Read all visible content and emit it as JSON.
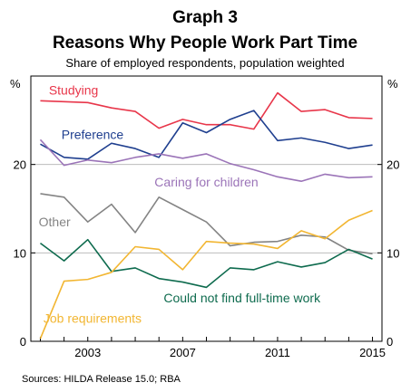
{
  "chart_data": {
    "type": "line",
    "title": "Graph 3",
    "subtitle": "Reasons Why People Work Part Time",
    "note": "Share of employed respondents, population weighted",
    "ylabel_left": "%",
    "ylabel_right": "%",
    "ylim": [
      0,
      30
    ],
    "yticks": [
      0,
      10,
      20
    ],
    "xlim": [
      2000.6,
      2015.4
    ],
    "xticks": [
      2003,
      2007,
      2011,
      2015
    ],
    "grid": true,
    "source": "Sources: HILDA Release 15.0; RBA",
    "x": [
      2001,
      2002,
      2003,
      2004,
      2005,
      2006,
      2007,
      2008,
      2009,
      2010,
      2011,
      2012,
      2013,
      2014,
      2015
    ],
    "series": [
      {
        "name": "Studying",
        "color": "#e8364a",
        "values": [
          27.2,
          27.1,
          27.0,
          26.4,
          26.0,
          24.1,
          25.1,
          24.5,
          24.5,
          24.0,
          28.1,
          26.0,
          26.2,
          25.3,
          25.2
        ]
      },
      {
        "name": "Preference",
        "color": "#1f3f8f",
        "values": [
          22.3,
          20.8,
          20.6,
          22.4,
          21.8,
          20.8,
          24.7,
          23.6,
          25.1,
          26.1,
          22.7,
          23.0,
          22.5,
          21.8,
          22.2
        ]
      },
      {
        "name": "Caring for children",
        "color": "#9b74b8",
        "values": [
          22.8,
          19.9,
          20.5,
          20.2,
          20.8,
          21.2,
          20.7,
          21.2,
          20.1,
          19.4,
          18.6,
          18.1,
          18.9,
          18.5,
          18.6
        ]
      },
      {
        "name": "Other",
        "color": "#848484",
        "values": [
          16.7,
          16.3,
          13.5,
          15.5,
          12.3,
          16.3,
          14.9,
          13.5,
          10.8,
          11.2,
          11.3,
          12.0,
          11.8,
          10.3,
          9.9
        ]
      },
      {
        "name": "Could not find full-time work",
        "color": "#0e6b4e",
        "values": [
          11.1,
          9.1,
          11.5,
          7.9,
          8.3,
          7.1,
          6.7,
          6.1,
          8.3,
          8.1,
          9.0,
          8.4,
          8.9,
          10.4,
          9.3
        ]
      },
      {
        "name": "Job requirements",
        "color": "#f2b632",
        "values": [
          0.3,
          6.8,
          7.0,
          7.8,
          10.7,
          10.4,
          8.1,
          11.3,
          11.1,
          11.0,
          10.5,
          12.5,
          11.6,
          13.7,
          14.8
        ]
      }
    ]
  }
}
